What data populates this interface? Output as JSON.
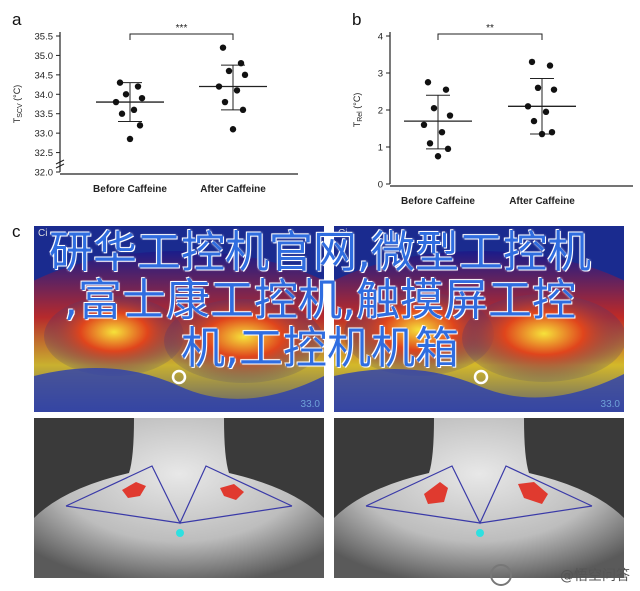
{
  "panels": {
    "a": {
      "letter": "a"
    },
    "b": {
      "letter": "b"
    },
    "c": {
      "letter": "c"
    }
  },
  "chart_data": [
    {
      "type": "scatter",
      "title": "",
      "ylabel": "T_SCV (°C)",
      "ylabel_main": "T",
      "ylabel_sub": "SCV",
      "ylabel_unit": " (°C)",
      "categories": [
        "Before Caffeine",
        "After Caffeine"
      ],
      "yticks": [
        "32.0",
        "32.5",
        "33.0",
        "33.5",
        "34.0",
        "34.5",
        "35.0",
        "35.5"
      ],
      "ylim": [
        32.0,
        35.5
      ],
      "significance": "***",
      "groups": [
        {
          "name": "Before Caffeine",
          "mean": 33.8,
          "sd_low": 33.3,
          "sd_high": 34.3,
          "points": [
            34.3,
            34.2,
            34.0,
            33.9,
            33.8,
            33.6,
            33.5,
            33.2,
            32.85
          ]
        },
        {
          "name": "After Caffeine",
          "mean": 34.2,
          "sd_low": 33.6,
          "sd_high": 34.75,
          "points": [
            35.2,
            34.8,
            34.6,
            34.5,
            34.2,
            34.1,
            33.8,
            33.6,
            33.1
          ]
        }
      ]
    },
    {
      "type": "scatter",
      "title": "",
      "ylabel": "T_Rel (°C)",
      "ylabel_main": "T",
      "ylabel_sub": "Rel",
      "ylabel_unit": " (°C)",
      "categories": [
        "Before Caffeine",
        "After Caffeine"
      ],
      "yticks": [
        "0",
        "1",
        "2",
        "3",
        "4"
      ],
      "ylim": [
        0,
        4
      ],
      "significance": "**",
      "groups": [
        {
          "name": "Before Caffeine",
          "mean": 1.7,
          "sd_low": 0.95,
          "sd_high": 2.4,
          "points": [
            2.75,
            2.55,
            2.05,
            1.85,
            1.6,
            1.4,
            1.1,
            0.95,
            0.75
          ]
        },
        {
          "name": "After Caffeine",
          "mean": 2.1,
          "sd_low": 1.35,
          "sd_high": 2.85,
          "points": [
            3.3,
            3.2,
            2.6,
            2.55,
            2.1,
            1.95,
            1.7,
            1.4,
            1.35
          ]
        }
      ]
    }
  ],
  "thermal": {
    "left_label": "33.0",
    "right_label": "33.0",
    "left_marker": "Ci",
    "right_marker": "Ci"
  },
  "overlay": {
    "line1": "研华工控机官网,微型工控机",
    "line2": ",富士康工控机,触摸屏工控",
    "line3": "机,工控机机箱"
  },
  "watermark": {
    "text": "@悟空问答"
  },
  "colors": {
    "overlay_text": "#2f6de0",
    "marker_red": "#e03a2f",
    "neck_dot": "#2ee0e0",
    "line_blue": "#3a3aa8"
  }
}
